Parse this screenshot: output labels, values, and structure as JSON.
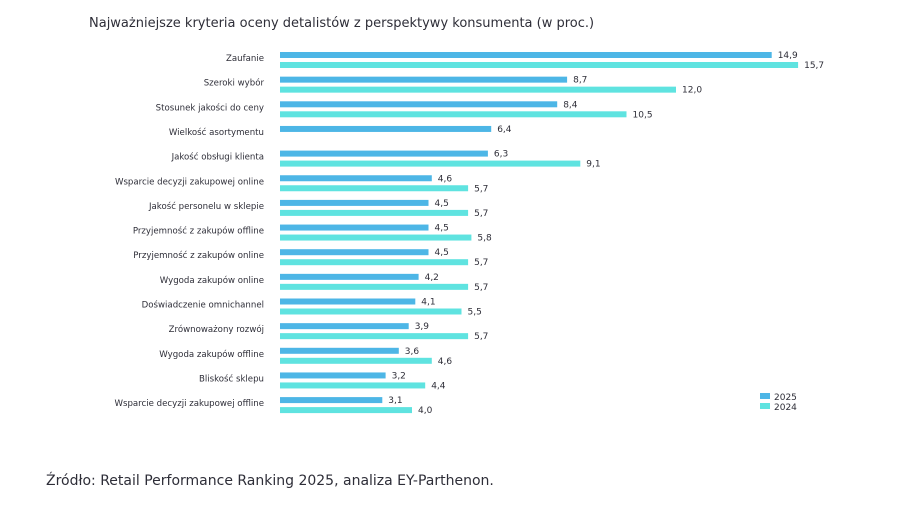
{
  "chart_data": {
    "type": "bar",
    "orientation": "horizontal",
    "title": "Najważniejsze kryteria oceny detalistów z perspektywy konsumenta (w proc.)",
    "xlabel": "",
    "ylabel": "",
    "categories": [
      "Zaufanie",
      "Szeroki wybór",
      "Stosunek jakości do ceny",
      "Wielkość asortymentu",
      "Jakość obsługi klienta",
      "Wsparcie decyzji zakupowej online",
      "Jakość personelu w sklepie",
      "Przyjemność z zakupów offline",
      "Przyjemność z zakupów online",
      "Wygoda zakupów online",
      "Doświadczenie omnichannel",
      "Zrównoważony rozwój",
      "Wygoda zakupów offline",
      "Bliskość sklepu",
      "Wsparcie decyzji zakupowej offline"
    ],
    "series": [
      {
        "name": "2025",
        "color": "#4db6e6",
        "values": [
          14.9,
          8.7,
          8.4,
          6.4,
          6.3,
          4.6,
          4.5,
          4.5,
          4.5,
          4.2,
          4.1,
          3.9,
          3.6,
          3.2,
          3.1
        ],
        "labels": [
          "14,9",
          "8,7",
          "8,4",
          "6,4",
          "6,3",
          "4,6",
          "4,5",
          "4,5",
          "4,5",
          "4,2",
          "4,1",
          "3,9",
          "3,6",
          "3,2",
          "3,1"
        ]
      },
      {
        "name": "2024",
        "color": "#5fe3e0",
        "values": [
          15.7,
          12.0,
          10.5,
          null,
          9.1,
          5.7,
          5.7,
          5.8,
          5.7,
          5.7,
          5.5,
          5.7,
          4.6,
          4.4,
          4.0
        ],
        "labels": [
          "15,7",
          "12,0",
          "10,5",
          null,
          "9,1",
          "5,7",
          "5,7",
          "5,8",
          "5,7",
          "5,7",
          "5,5",
          "5,7",
          "4,6",
          "4,4",
          "4,0"
        ]
      }
    ],
    "xlim": [
      0,
      16
    ],
    "grid": false,
    "axis_visible": false,
    "legend": {
      "position": "bottom-right",
      "entries": [
        "2025",
        "2024"
      ]
    },
    "decimal_separator": ","
  },
  "source": "Źródło: Retail Performance Ranking 2025, analiza EY-Parthenon."
}
